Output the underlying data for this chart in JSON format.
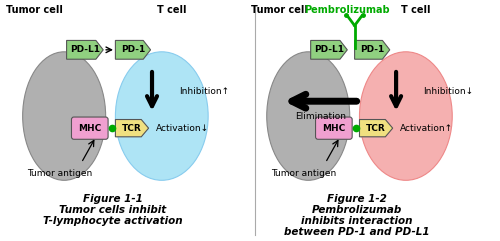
{
  "bg_color": "#ffffff",
  "tumor_cell_color": "#b0b0b0",
  "tcell_left_color": "#aee4f5",
  "tcell_right_color": "#f5b0b0",
  "pdl1_color": "#90d080",
  "pd1_color": "#90d080",
  "mhc_color": "#f0a0d0",
  "tcr_color": "#f0e080",
  "dot_color": "#00aa00",
  "pembrolizumab_color": "#00aa00",
  "arrow_black": "#000000",
  "fig1_title": "Figure 1-1",
  "fig1_sub1": "Tumor cells inhibit",
  "fig1_sub2": "T-lymphocyte activation",
  "fig2_title": "Figure 1-2",
  "fig2_sub1": "Pembrolizumab",
  "fig2_sub2": "inhibits interaction",
  "fig2_sub3": "between PD-1 and PD-L1"
}
